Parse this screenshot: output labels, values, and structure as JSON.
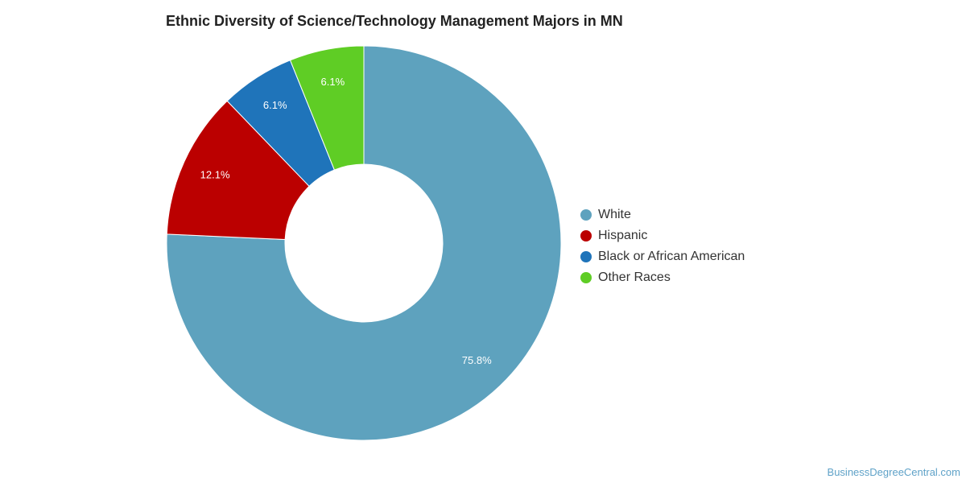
{
  "chart_data": {
    "type": "pie",
    "variant": "donut",
    "title": "Ethnic Diversity of Science/Technology Management Majors in MN",
    "slices": [
      {
        "label": "White",
        "value": 75.8,
        "display": "75.8%",
        "color": "#5ea2be"
      },
      {
        "label": "Hispanic",
        "value": 12.1,
        "display": "12.1%",
        "color": "#bb0000"
      },
      {
        "label": "Black or African American",
        "value": 6.1,
        "display": "6.1%",
        "color": "#1f74ba"
      },
      {
        "label": "Other Races",
        "value": 6.1,
        "display": "6.1%",
        "color": "#5fcd25"
      }
    ],
    "legend_position": "right"
  },
  "watermark": "BusinessDegreeCentral.com"
}
